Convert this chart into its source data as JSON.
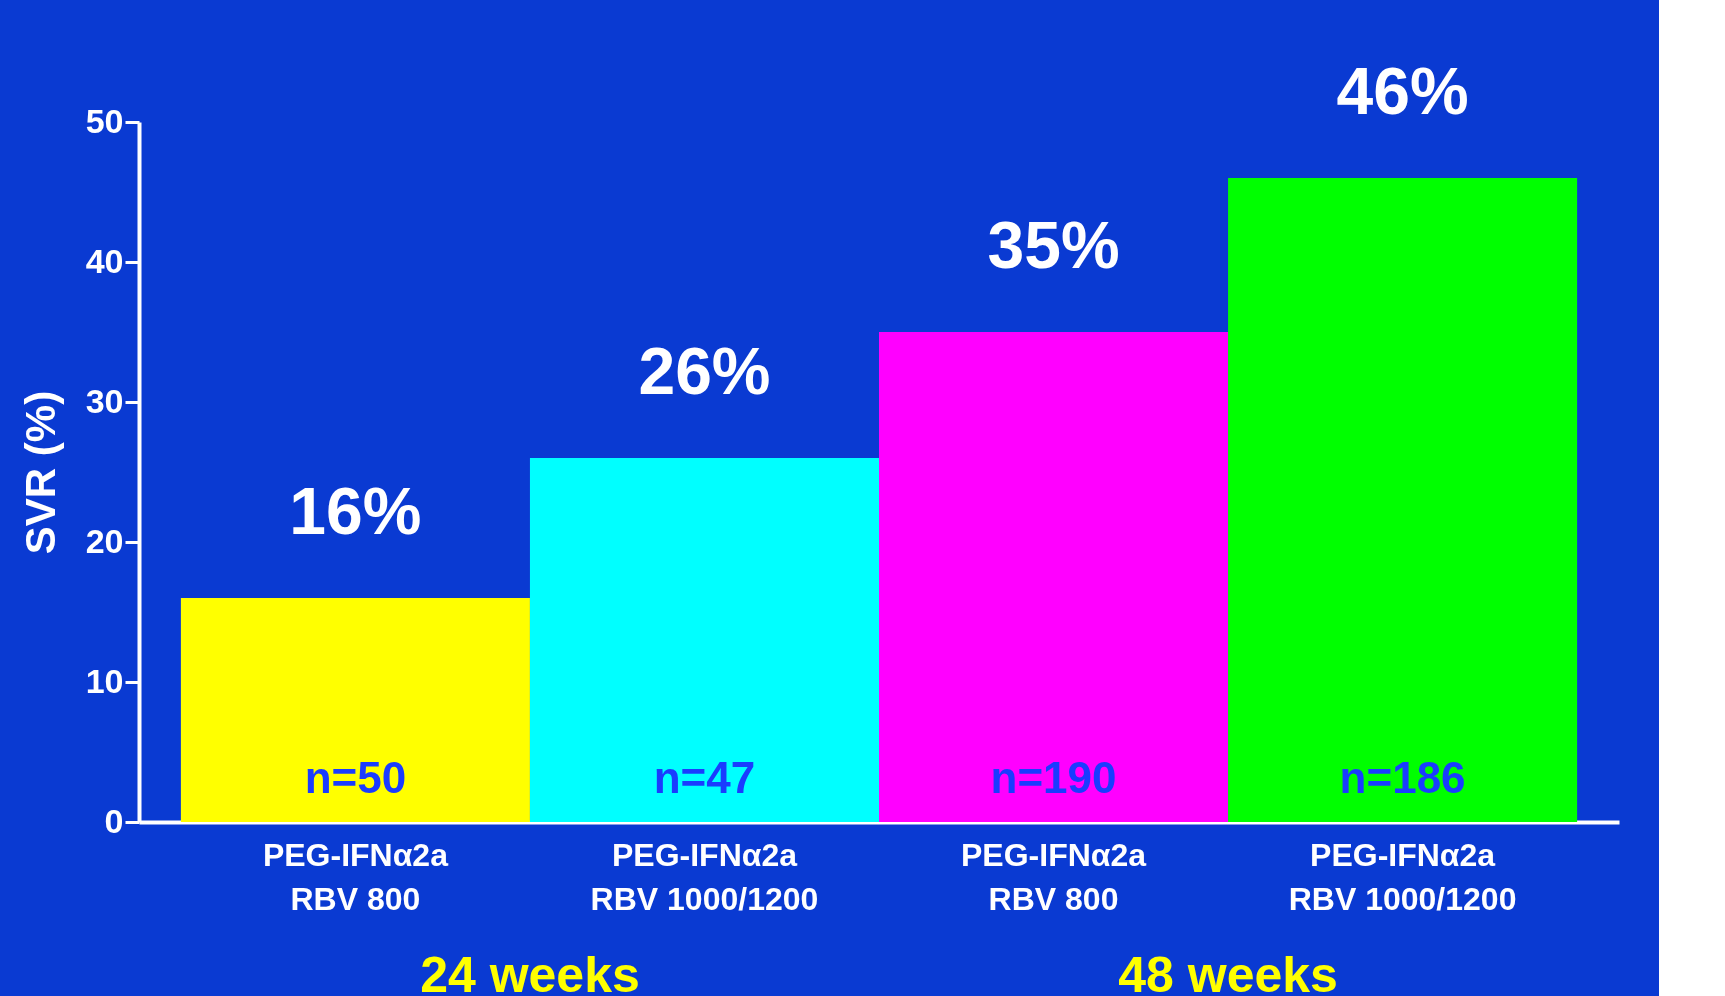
{
  "chart_data": {
    "type": "bar",
    "ylabel": "SVR (%)",
    "categories": [
      "PEG-IFNα2a\nRBV 800",
      "PEG-IFNα2a\nRBV 1000/1200",
      "PEG-IFNα2a\nRBV 800",
      "PEG-IFNα2a\nRBV 1000/1200"
    ],
    "values": [
      16,
      26,
      35,
      46
    ],
    "colors": [
      "#ffff00",
      "#00ffff",
      "#ff00ff",
      "#00ff00"
    ],
    "value_labels": [
      "16%",
      "26%",
      "35%",
      "46%"
    ],
    "ylim": [
      0,
      50
    ],
    "yticks": [
      0,
      10,
      20,
      30,
      40,
      50
    ],
    "grid": false,
    "annotations": [
      "n=50",
      "n=47",
      "n=190",
      "n=186",
      "24 weeks",
      "48 weeks"
    ]
  }
}
